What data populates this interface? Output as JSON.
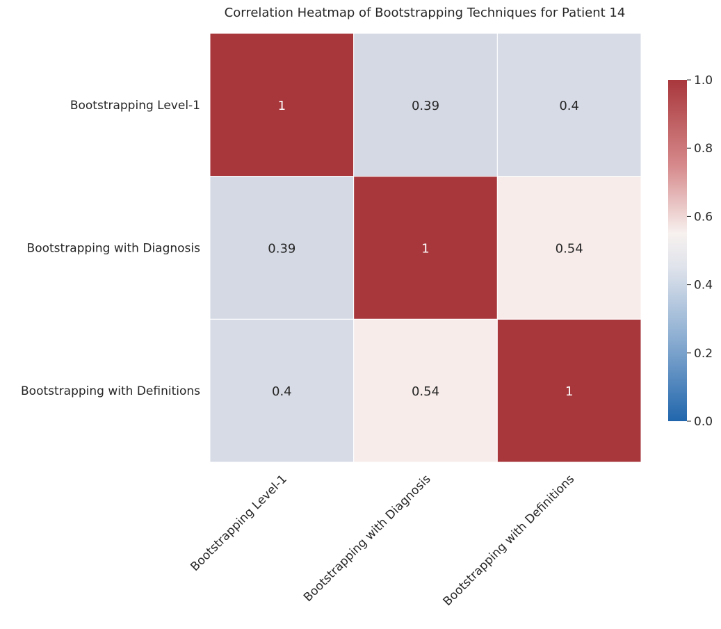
{
  "chart_data": {
    "type": "heatmap",
    "title": "Correlation Heatmap of Bootstrapping Techniques for Patient 14",
    "xlabel": "",
    "ylabel": "",
    "row_labels": [
      "Bootstrapping Level-1",
      "Bootstrapping with Diagnosis",
      "Bootstrapping with Definitions"
    ],
    "col_labels": [
      "Bootstrapping Level-1",
      "Bootstrapping with Diagnosis",
      "Bootstrapping with Definitions"
    ],
    "values": [
      [
        1,
        0.39,
        0.4
      ],
      [
        0.39,
        1,
        0.54
      ],
      [
        0.4,
        0.54,
        1
      ]
    ],
    "cell_labels": [
      [
        "1",
        "0.39",
        "0.4"
      ],
      [
        "0.39",
        "1",
        "0.54"
      ],
      [
        "0.4",
        "0.54",
        "1"
      ]
    ],
    "color_range": [
      0,
      1
    ],
    "colormap": [
      "#2166ac",
      "#f7f7f7",
      "#a8373c"
    ],
    "colorbar_ticks": [
      "0.0",
      "0.2",
      "0.4",
      "0.6",
      "0.8",
      "1.0"
    ],
    "colorbar_tick_values": [
      0,
      0.2,
      0.4,
      0.6,
      0.8,
      1.0
    ],
    "grid": false,
    "legend": "colorbar-right"
  }
}
